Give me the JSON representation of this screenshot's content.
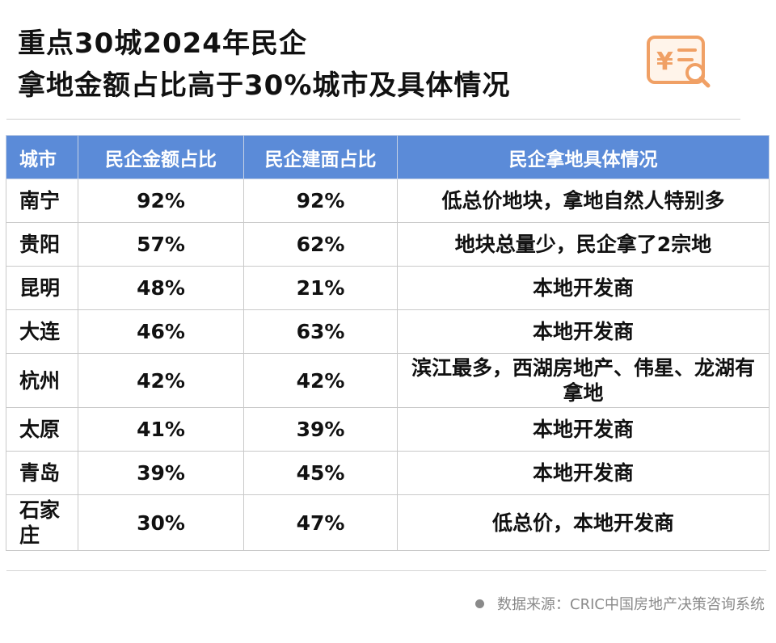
{
  "title": {
    "line1": "重点30城2024年民企",
    "line2": "拿地金额占比高于30%城市及具体情况"
  },
  "icon": {
    "name": "yuan-document-search-icon",
    "color": "#f0a065"
  },
  "table": {
    "headers": [
      "城市",
      "民企金额占比",
      "民企建面占比",
      "民企拿地具体情况"
    ],
    "header_bg": "#5b8bd8",
    "rows": [
      {
        "city": "南宁",
        "amount": "92%",
        "area": "92%",
        "detail": "低总价地块，拿地自然人特别多"
      },
      {
        "city": "贵阳",
        "amount": "57%",
        "area": "62%",
        "detail": "地块总量少，民企拿了2宗地"
      },
      {
        "city": "昆明",
        "amount": "48%",
        "area": "21%",
        "detail": "本地开发商"
      },
      {
        "city": "大连",
        "amount": "46%",
        "area": "63%",
        "detail": "本地开发商"
      },
      {
        "city": "杭州",
        "amount": "42%",
        "area": "42%",
        "detail": "滨江最多，西湖房地产、伟星、龙湖有拿地"
      },
      {
        "city": "太原",
        "amount": "41%",
        "area": "39%",
        "detail": "本地开发商"
      },
      {
        "city": "青岛",
        "amount": "39%",
        "area": "45%",
        "detail": "本地开发商"
      },
      {
        "city": "石家庄",
        "amount": "30%",
        "area": "47%",
        "detail": "低总价，本地开发商"
      }
    ]
  },
  "source": "数据来源：CRIC中国房地产决策咨询系统"
}
